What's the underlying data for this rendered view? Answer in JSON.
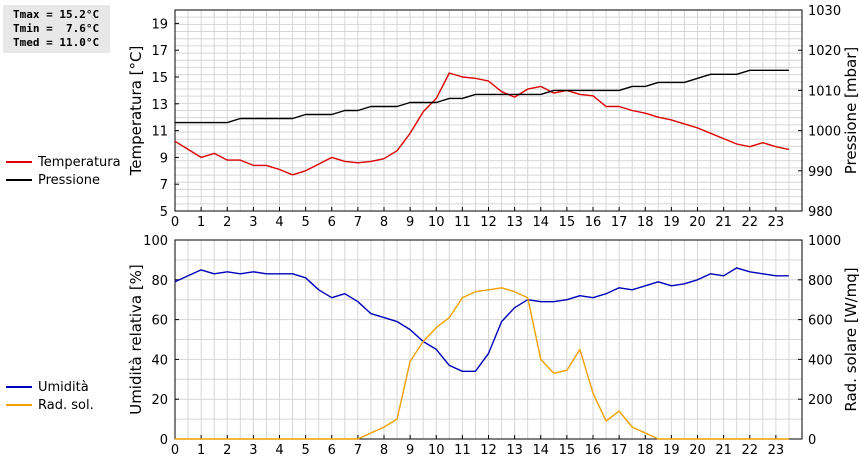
{
  "stats": {
    "lines": [
      "Tmax = 15.2°C",
      "Tmin =  7.6°C",
      "Tmed = 11.0°C"
    ]
  },
  "chart_data": [
    {
      "type": "line",
      "x": [
        0,
        0.5,
        1,
        1.5,
        2,
        2.5,
        3,
        3.5,
        4,
        4.5,
        5,
        5.5,
        6,
        6.5,
        7,
        7.5,
        8,
        8.5,
        9,
        9.5,
        10,
        10.5,
        11,
        11.5,
        12,
        12.5,
        13,
        13.5,
        14,
        14.5,
        15,
        15.5,
        16,
        16.5,
        17,
        17.5,
        18,
        18.5,
        19,
        19.5,
        20,
        20.5,
        21,
        21.5,
        22,
        22.5,
        23,
        23.5
      ],
      "xlim": [
        0,
        24
      ],
      "xticks": [
        "0",
        "1",
        "2",
        "3",
        "4",
        "5",
        "6",
        "7",
        "8",
        "9",
        "10",
        "11",
        "12",
        "13",
        "14",
        "15",
        "16",
        "17",
        "18",
        "19",
        "20",
        "21",
        "22",
        "23"
      ],
      "ylabel": "Temperatura [°C]",
      "ylim": [
        5,
        20
      ],
      "yticks": [
        "5",
        "7",
        "9",
        "11",
        "13",
        "15",
        "17",
        "19"
      ],
      "y2label": "Pressione [mbar]",
      "y2lim": [
        980,
        1030
      ],
      "y2ticks": [
        "980",
        "990",
        "1000",
        "1010",
        "1020",
        "1030"
      ],
      "grid": true,
      "legend_position": "left",
      "series": [
        {
          "name": "Temperatura",
          "axis": "left",
          "color": "#dd0000",
          "values": [
            10.2,
            9.6,
            9.0,
            9.3,
            8.8,
            8.8,
            8.4,
            8.4,
            8.1,
            7.7,
            8.0,
            8.5,
            9.0,
            8.7,
            8.6,
            8.7,
            8.9,
            9.5,
            10.8,
            12.4,
            13.4,
            15.3,
            15.0,
            14.9,
            14.7,
            13.9,
            13.5,
            14.1,
            14.3,
            13.8,
            14.0,
            13.7,
            13.6,
            12.8,
            12.8,
            12.5,
            12.3,
            12.0,
            11.8,
            11.5,
            11.2,
            10.8,
            10.4,
            10.0,
            9.8,
            10.1,
            9.8,
            9.6
          ]
        },
        {
          "name": "Pressione",
          "axis": "right",
          "color": "#000000",
          "values": [
            1002,
            1002,
            1002,
            1002,
            1002,
            1003,
            1003,
            1003,
            1003,
            1003,
            1004,
            1004,
            1004,
            1005,
            1005,
            1006,
            1006,
            1006,
            1007,
            1007,
            1007,
            1008,
            1008,
            1009,
            1009,
            1009,
            1009,
            1009,
            1009,
            1010,
            1010,
            1010,
            1010,
            1010,
            1010,
            1011,
            1011,
            1012,
            1012,
            1012,
            1013,
            1014,
            1014,
            1014,
            1015,
            1015,
            1015,
            1015
          ]
        }
      ]
    },
    {
      "type": "line",
      "x": [
        0,
        0.5,
        1,
        1.5,
        2,
        2.5,
        3,
        3.5,
        4,
        4.5,
        5,
        5.5,
        6,
        6.5,
        7,
        7.5,
        8,
        8.5,
        9,
        9.5,
        10,
        10.5,
        11,
        11.5,
        12,
        12.5,
        13,
        13.5,
        14,
        14.5,
        15,
        15.5,
        16,
        16.5,
        17,
        17.5,
        18,
        18.5,
        19,
        19.5,
        20,
        20.5,
        21,
        21.5,
        22,
        22.5,
        23,
        23.5
      ],
      "xlim": [
        0,
        24
      ],
      "xticks": [
        "0",
        "1",
        "2",
        "3",
        "4",
        "5",
        "6",
        "7",
        "8",
        "9",
        "10",
        "11",
        "12",
        "13",
        "14",
        "15",
        "16",
        "17",
        "18",
        "19",
        "20",
        "21",
        "22",
        "23"
      ],
      "ylabel": "Umidità relativa [%]",
      "ylim": [
        0,
        100
      ],
      "yticks": [
        "0",
        "20",
        "40",
        "60",
        "80",
        "100"
      ],
      "y2label": "Rad. solare [W/mq]",
      "y2lim": [
        0,
        1000
      ],
      "y2ticks": [
        "0",
        "200",
        "400",
        "600",
        "800",
        "1000"
      ],
      "grid": true,
      "legend_position": "left",
      "series": [
        {
          "name": "Umidità",
          "axis": "left",
          "color": "#0000bb",
          "values": [
            79,
            82,
            85,
            83,
            84,
            83,
            84,
            83,
            83,
            83,
            81,
            75,
            71,
            73,
            69,
            63,
            61,
            59,
            55,
            49,
            45,
            37,
            34,
            34,
            43,
            59,
            66,
            70,
            69,
            69,
            70,
            72,
            71,
            73,
            76,
            75,
            77,
            79,
            77,
            78,
            80,
            83,
            82,
            86,
            84,
            83,
            82,
            82
          ]
        },
        {
          "name": "Rad. sol.",
          "axis": "right",
          "color": "#f0a000",
          "values": [
            0,
            0,
            0,
            0,
            0,
            0,
            0,
            0,
            0,
            0,
            0,
            0,
            0,
            0,
            0,
            30,
            60,
            100,
            390,
            490,
            560,
            610,
            710,
            740,
            750,
            760,
            740,
            710,
            400,
            330,
            345,
            450,
            230,
            90,
            140,
            60,
            30,
            0,
            0,
            0,
            0,
            0,
            0,
            0,
            0,
            0,
            0,
            0
          ]
        }
      ]
    }
  ]
}
